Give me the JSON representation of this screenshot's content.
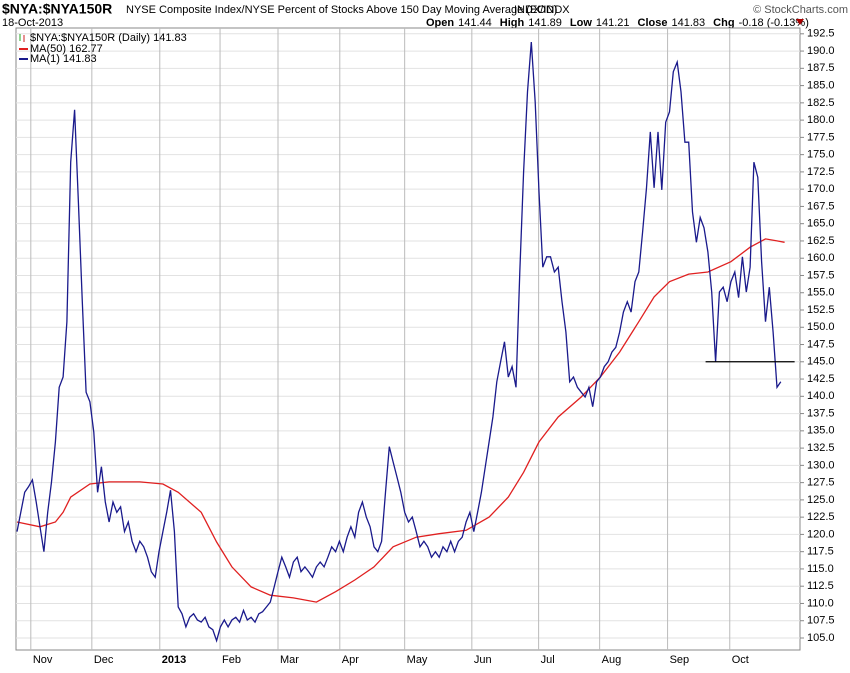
{
  "chart_data": {
    "type": "line",
    "title": "$NYA:$NYA150R",
    "subtitle": "NYSE Composite Index/NYSE Percent of Stocks Above 150 Day Moving Average (EOD)",
    "exchange": "INDX/INDX",
    "credit": "© StockCharts.com",
    "date": "18-Oct-2013",
    "quote": [
      {
        "label": "Open",
        "value": 141.44
      },
      {
        "label": "High",
        "value": 141.89
      },
      {
        "label": "Low",
        "value": 141.21
      },
      {
        "label": "Close",
        "value": 141.83
      },
      {
        "label": "Chg",
        "value": "-0.18 (-0.13%)"
      }
    ],
    "price_label": "$NYA:$NYA150R (Daily) 141.83",
    "xlim": [
      0,
      204
    ],
    "xticks": [
      {
        "value": 3.6,
        "label": "Nov"
      },
      {
        "value": 19.5,
        "label": "Dec"
      },
      {
        "value": 37.2,
        "label": "2013"
      },
      {
        "value": 52.9,
        "label": "Feb"
      },
      {
        "value": 68,
        "label": "Mar"
      },
      {
        "value": 84.1,
        "label": "Apr"
      },
      {
        "value": 101,
        "label": "May"
      },
      {
        "value": 118.5,
        "label": "Jun"
      },
      {
        "value": 135.9,
        "label": "Jul"
      },
      {
        "value": 151.8,
        "label": "Aug"
      },
      {
        "value": 169.5,
        "label": "Sep"
      },
      {
        "value": 185.7,
        "label": "Oct"
      }
    ],
    "ylim": [
      103.26,
      193.34
    ],
    "yticks": [
      {
        "value": 105,
        "label": "105.0"
      },
      {
        "value": 107.5,
        "label": "107.5"
      },
      {
        "value": 110,
        "label": "110.0"
      },
      {
        "value": 112.5,
        "label": "112.5"
      },
      {
        "value": 115,
        "label": "115.0"
      },
      {
        "value": 117.5,
        "label": "117.5"
      },
      {
        "value": 120,
        "label": "120.0"
      },
      {
        "value": 122.5,
        "label": "122.5"
      },
      {
        "value": 125,
        "label": "125.0"
      },
      {
        "value": 127.5,
        "label": "127.5"
      },
      {
        "value": 130,
        "label": "130.0"
      },
      {
        "value": 132.5,
        "label": "132.5"
      },
      {
        "value": 135,
        "label": "135.0"
      },
      {
        "value": 137.5,
        "label": "137.5"
      },
      {
        "value": 140,
        "label": "140.0"
      },
      {
        "value": 142.5,
        "label": "142.5"
      },
      {
        "value": 145,
        "label": "145.0"
      },
      {
        "value": 147.5,
        "label": "147.5"
      },
      {
        "value": 150,
        "label": "150.0"
      },
      {
        "value": 152.5,
        "label": "152.5"
      },
      {
        "value": 155,
        "label": "155.0"
      },
      {
        "value": 157.5,
        "label": "157.5"
      },
      {
        "value": 160,
        "label": "160.0"
      },
      {
        "value": 162.5,
        "label": "162.5"
      },
      {
        "value": 165,
        "label": "165.0"
      },
      {
        "value": 167.5,
        "label": "167.5"
      },
      {
        "value": 170,
        "label": "170.0"
      },
      {
        "value": 172.5,
        "label": "172.5"
      },
      {
        "value": 175,
        "label": "175.0"
      },
      {
        "value": 177.5,
        "label": "177.5"
      },
      {
        "value": 180,
        "label": "180.0"
      },
      {
        "value": 182.5,
        "label": "182.5"
      },
      {
        "value": 185,
        "label": "185.0"
      },
      {
        "value": 187.5,
        "label": "187.5"
      },
      {
        "value": 190,
        "label": "190.0"
      },
      {
        "value": 192.5,
        "label": "192.5"
      }
    ],
    "grid": true,
    "series": [
      {
        "name": "MA(50) 162.77",
        "color": "#e02020",
        "x": [
          0,
          6,
          10,
          12,
          14,
          19,
          24,
          32,
          38,
          42,
          48,
          52,
          56,
          61,
          66,
          72,
          78,
          83,
          88,
          93,
          98,
          104,
          110,
          117,
          123,
          128,
          132,
          136,
          141,
          147,
          152,
          157,
          162,
          166,
          170,
          175,
          180,
          186,
          191,
          195,
          198,
          200
        ],
        "values": [
          121.8,
          121.1,
          121.8,
          123.2,
          125.4,
          127.3,
          127.6,
          127.6,
          127.3,
          126.1,
          123.2,
          118.9,
          115.3,
          112.4,
          111.2,
          110.8,
          110.2,
          111.7,
          113.4,
          115.3,
          118.2,
          119.6,
          120.1,
          120.6,
          122.5,
          125.4,
          129,
          133.4,
          137,
          139.9,
          142.8,
          146.4,
          150.8,
          154.4,
          156.6,
          157.7,
          158,
          159.5,
          161.6,
          162.8,
          162.5,
          162.3
        ]
      },
      {
        "name": "MA(1) 141.83",
        "color": "#1a1a8c",
        "values": [
          120.4,
          123.2,
          126.1,
          126.9,
          127.9,
          124.7,
          121.1,
          117.5,
          123.2,
          127.6,
          133.4,
          141.3,
          142.8,
          150.8,
          173.9,
          181.5,
          168.1,
          153.7,
          140.6,
          139.2,
          134.8,
          126.1,
          129.8,
          124.7,
          121.8,
          124.7,
          123.2,
          124,
          120.4,
          121.8,
          119,
          117.5,
          119,
          118.2,
          116.7,
          114.6,
          113.8,
          117.5,
          120.4,
          123.2,
          126.4,
          120.4,
          109.5,
          108.5,
          106.6,
          108,
          108.5,
          107.6,
          107.3,
          108,
          106.6,
          106.2,
          104.6,
          106.6,
          107.6,
          106.6,
          107.6,
          108,
          107.3,
          109,
          107.6,
          108,
          107.3,
          108.5,
          108.8,
          109.5,
          110.2,
          112.4,
          114.6,
          116.7,
          115.3,
          113.8,
          116,
          116.7,
          114.6,
          115.3,
          114.6,
          113.8,
          115.3,
          116,
          115.3,
          116.7,
          118.2,
          117.5,
          119,
          117.5,
          119.6,
          121.1,
          119.6,
          123.2,
          124.7,
          122.5,
          121.1,
          118.2,
          117.5,
          119,
          126.1,
          132.7,
          130.5,
          128.3,
          126.1,
          123.2,
          121.8,
          122.5,
          120.4,
          118.2,
          119,
          118.2,
          116.7,
          117.5,
          116.7,
          118.2,
          117.5,
          119,
          117.5,
          119,
          119.6,
          121.8,
          123.2,
          120.4,
          123.2,
          126.1,
          129.8,
          133.4,
          137,
          142.1,
          145,
          147.9,
          142.8,
          144.3,
          141.3,
          158,
          172.5,
          184.1,
          191.3,
          182.6,
          169.6,
          158.7,
          160.2,
          160.2,
          158,
          158.7,
          153.7,
          149.3,
          142.1,
          142.8,
          141.3,
          140.6,
          139.9,
          141.3,
          138.5,
          142.1,
          142.8,
          144.3,
          145,
          146.4,
          147.1,
          149.3,
          152.2,
          153.7,
          152.2,
          156.6,
          158,
          163.8,
          170.2,
          178.3,
          170.2,
          178.3,
          169.9,
          179.7,
          181.2,
          187,
          188.4,
          184.1,
          176.8,
          176.8,
          166.7,
          162.3,
          165.9,
          164.4,
          160.9,
          155.1,
          145,
          155.1,
          155.8,
          153.7,
          156.6,
          158,
          154.3,
          160.2,
          155.1,
          158.7,
          173.9,
          171.7,
          159.5,
          150.8,
          155.8,
          149.3,
          141.3,
          142.1
        ]
      }
    ],
    "hline": {
      "y": 145,
      "x": [
        179.4,
        202.6
      ],
      "color": "#000000"
    }
  }
}
